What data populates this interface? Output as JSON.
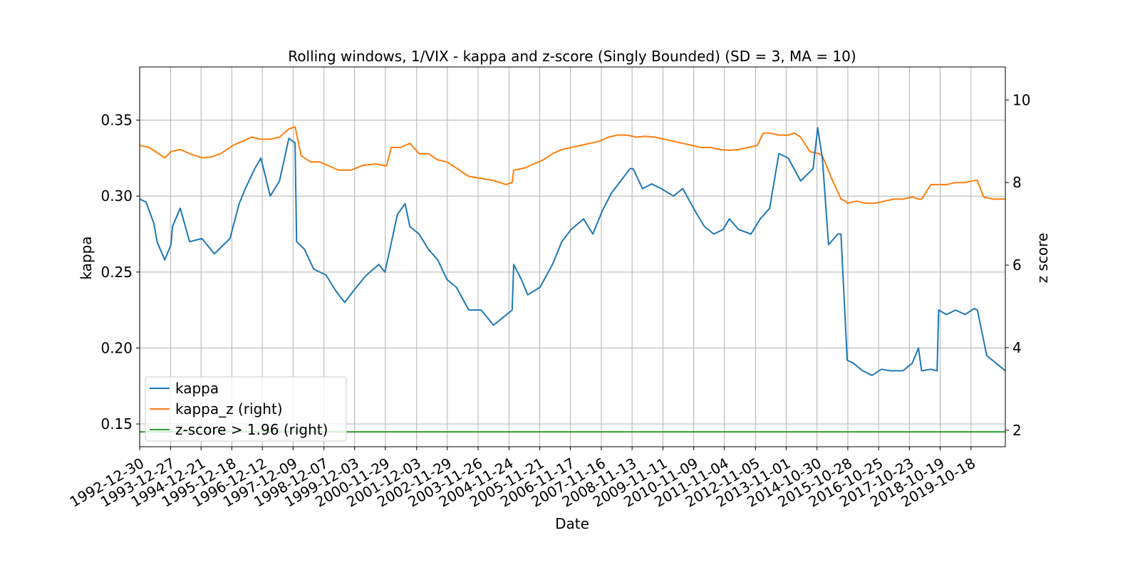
{
  "chart_data": {
    "type": "line",
    "title": "Rolling windows, 1/VIX - kappa and z-score (Singly Bounded) (SD = 3, MA = 10)",
    "xlabel": "Date",
    "ylabel": "kappa",
    "ylabel_right": "z score",
    "grid": true,
    "legend_position": "lower-left",
    "x_tick_labels": [
      "1992-12-30",
      "1993-12-27",
      "1994-12-21",
      "1995-12-18",
      "1996-12-12",
      "1997-12-09",
      "1998-12-07",
      "1999-12-03",
      "2000-11-29",
      "2001-12-03",
      "2002-11-29",
      "2003-11-26",
      "2004-11-24",
      "2005-11-21",
      "2006-11-17",
      "2007-11-16",
      "2008-11-13",
      "2009-11-11",
      "2010-11-09",
      "2011-11-04",
      "2012-11-05",
      "2013-11-01",
      "2014-10-30",
      "2015-10-28",
      "2016-10-25",
      "2017-10-23",
      "2018-10-19",
      "2019-10-18"
    ],
    "x_range_years": [
      1992.99,
      2020.9
    ],
    "y_left": {
      "ylim": [
        0.135,
        0.385
      ],
      "ticks": [
        0.15,
        0.2,
        0.25,
        0.3,
        0.35
      ],
      "tick_labels": [
        "0.15",
        "0.20",
        "0.25",
        "0.30",
        "0.35"
      ]
    },
    "y_right": {
      "ylim": [
        1.6,
        10.8
      ],
      "ticks": [
        2,
        4,
        6,
        8,
        10
      ],
      "tick_labels": [
        "2",
        "4",
        "6",
        "8",
        "10"
      ]
    },
    "series": [
      {
        "name": "kappa",
        "axis": "left",
        "color": "#1f77b4",
        "x_years": [
          1993.0,
          1993.2,
          1993.45,
          1993.55,
          1993.8,
          1994.0,
          1994.05,
          1994.3,
          1994.6,
          1995.0,
          1995.4,
          1995.7,
          1995.9,
          1996.2,
          1996.4,
          1996.7,
          1996.9,
          1997.2,
          1997.5,
          1997.8,
          1998.0,
          1998.05,
          1998.3,
          1998.6,
          1999.0,
          1999.3,
          1999.6,
          1999.9,
          2000.3,
          2000.7,
          2000.9,
          2001.3,
          2001.55,
          2001.7,
          2002.0,
          2002.3,
          2002.6,
          2002.9,
          2003.2,
          2003.6,
          2004.0,
          2004.4,
          2004.7,
          2005.0,
          2005.05,
          2005.3,
          2005.5,
          2005.9,
          2006.3,
          2006.6,
          2006.9,
          2007.3,
          2007.6,
          2007.9,
          2008.2,
          2008.5,
          2008.8,
          2008.9,
          2009.2,
          2009.5,
          2009.8,
          2010.2,
          2010.5,
          2010.9,
          2011.2,
          2011.5,
          2011.8,
          2012.0,
          2012.3,
          2012.7,
          2013.0,
          2013.3,
          2013.6,
          2013.9,
          2014.3,
          2014.7,
          2014.85,
          2015.0,
          2015.2,
          2015.5,
          2015.6,
          2015.8,
          2016.0,
          2016.3,
          2016.6,
          2016.9,
          2017.2,
          2017.6,
          2017.9,
          2018.1,
          2018.2,
          2018.5,
          2018.7,
          2018.75,
          2019.0,
          2019.3,
          2019.6,
          2019.9,
          2020.0,
          2020.3,
          2020.6,
          2020.9
        ],
        "values": [
          0.298,
          0.296,
          0.282,
          0.27,
          0.258,
          0.268,
          0.28,
          0.292,
          0.27,
          0.272,
          0.262,
          0.268,
          0.272,
          0.295,
          0.305,
          0.318,
          0.325,
          0.3,
          0.31,
          0.338,
          0.335,
          0.27,
          0.265,
          0.252,
          0.248,
          0.238,
          0.23,
          0.238,
          0.248,
          0.255,
          0.25,
          0.288,
          0.295,
          0.28,
          0.275,
          0.265,
          0.258,
          0.245,
          0.24,
          0.225,
          0.225,
          0.215,
          0.22,
          0.225,
          0.255,
          0.245,
          0.235,
          0.24,
          0.255,
          0.27,
          0.278,
          0.285,
          0.275,
          0.29,
          0.302,
          0.31,
          0.318,
          0.318,
          0.305,
          0.308,
          0.305,
          0.3,
          0.305,
          0.29,
          0.28,
          0.275,
          0.278,
          0.285,
          0.278,
          0.275,
          0.285,
          0.292,
          0.328,
          0.325,
          0.31,
          0.318,
          0.345,
          0.325,
          0.268,
          0.275,
          0.275,
          0.192,
          0.19,
          0.185,
          0.182,
          0.186,
          0.185,
          0.185,
          0.19,
          0.2,
          0.185,
          0.186,
          0.185,
          0.225,
          0.222,
          0.225,
          0.222,
          0.226,
          0.225,
          0.195,
          0.19,
          0.185
        ]
      },
      {
        "name": "kappa_z (right)",
        "axis": "right",
        "color": "#ff7f0e",
        "x_years": [
          1993.0,
          1993.3,
          1993.6,
          1993.8,
          1994.0,
          1994.3,
          1994.6,
          1995.0,
          1995.3,
          1995.6,
          1996.0,
          1996.3,
          1996.6,
          1996.9,
          1997.2,
          1997.5,
          1997.8,
          1998.0,
          1998.2,
          1998.5,
          1998.8,
          1999.1,
          1999.4,
          1999.8,
          2000.2,
          2000.6,
          2000.95,
          2001.1,
          2001.4,
          2001.7,
          2002.0,
          2002.3,
          2002.6,
          2002.9,
          2003.2,
          2003.6,
          2004.0,
          2004.4,
          2004.8,
          2005.0,
          2005.05,
          2005.4,
          2005.7,
          2006.0,
          2006.3,
          2006.6,
          2006.9,
          2007.2,
          2007.5,
          2007.8,
          2008.1,
          2008.4,
          2008.7,
          2009.0,
          2009.3,
          2009.6,
          2009.9,
          2010.2,
          2010.5,
          2010.8,
          2011.1,
          2011.4,
          2011.7,
          2012.0,
          2012.3,
          2012.6,
          2012.9,
          2013.1,
          2013.3,
          2013.6,
          2013.9,
          2014.1,
          2014.3,
          2014.6,
          2014.9,
          2015.0,
          2015.3,
          2015.6,
          2015.75,
          2015.8,
          2016.1,
          2016.4,
          2016.7,
          2017.0,
          2017.3,
          2017.6,
          2017.9,
          2018.1,
          2018.2,
          2018.5,
          2018.7,
          2018.75,
          2019.0,
          2019.3,
          2019.6,
          2019.9,
          2020.0,
          2020.2,
          2020.5,
          2020.9
        ],
        "values": [
          8.9,
          8.85,
          8.7,
          8.6,
          8.75,
          8.8,
          8.7,
          8.6,
          8.62,
          8.7,
          8.9,
          9.0,
          9.1,
          9.05,
          9.05,
          9.1,
          9.3,
          9.35,
          8.65,
          8.5,
          8.5,
          8.4,
          8.3,
          8.3,
          8.42,
          8.45,
          8.4,
          8.85,
          8.85,
          8.95,
          8.7,
          8.7,
          8.55,
          8.5,
          8.35,
          8.15,
          8.1,
          8.05,
          7.95,
          8.0,
          8.3,
          8.35,
          8.45,
          8.55,
          8.7,
          8.8,
          8.85,
          8.9,
          8.95,
          9.0,
          9.1,
          9.15,
          9.15,
          9.1,
          9.12,
          9.1,
          9.05,
          9.0,
          8.95,
          8.9,
          8.85,
          8.85,
          8.8,
          8.78,
          8.8,
          8.85,
          8.9,
          9.2,
          9.2,
          9.15,
          9.15,
          9.2,
          9.1,
          8.75,
          8.7,
          8.65,
          8.1,
          7.6,
          7.55,
          7.5,
          7.55,
          7.5,
          7.5,
          7.55,
          7.6,
          7.6,
          7.65,
          7.6,
          7.6,
          7.95,
          7.95,
          7.95,
          7.95,
          8.0,
          8.0,
          8.05,
          8.05,
          7.65,
          7.6,
          7.6
        ]
      },
      {
        "name": "z-score > 1.96 (right)",
        "axis": "right",
        "color": "#2ca02c",
        "x_years": [
          1992.99,
          2020.9
        ],
        "values": [
          1.96,
          1.96
        ]
      }
    ]
  }
}
